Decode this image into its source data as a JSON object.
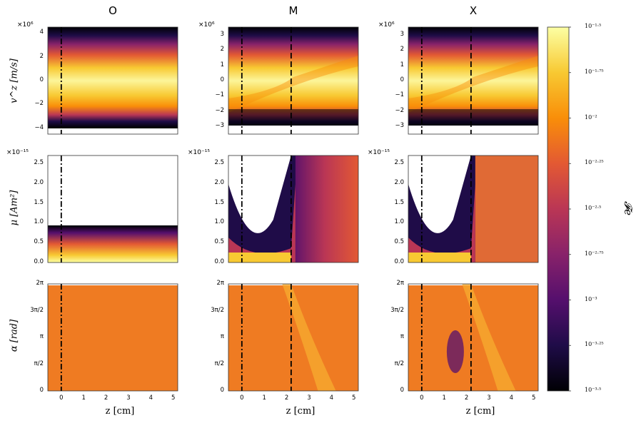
{
  "chart_data": {
    "type": "heatmap",
    "columns": [
      "O",
      "M",
      "X"
    ],
    "row_labels": {
      "vz": "v^z [m/s]",
      "mu": "μ [Am²]",
      "alpha": "α [rad]"
    },
    "exponents": {
      "vz": "×10⁶",
      "mu": "×10⁻¹⁵"
    },
    "xlabel": "z [cm]",
    "x_ticks": [
      "0",
      "1",
      "2",
      "3",
      "4",
      "5"
    ],
    "xlim": [
      -0.6,
      5.2
    ],
    "vz_ticks_O": [
      "4",
      "2",
      "0",
      "−2",
      "−4"
    ],
    "vz_ticks_MX": [
      "3",
      "2",
      "1",
      "0",
      "−1",
      "−2",
      "−3"
    ],
    "vz_lim_O": [
      -4.5,
      4.5
    ],
    "vz_lim_MX": [
      -3.5,
      3.5
    ],
    "mu_ticks": [
      "2.5",
      "2.0",
      "1.5",
      "1.0",
      "0.5",
      "0.0"
    ],
    "mu_lim": [
      0.0,
      2.7
    ],
    "alpha_ticks": [
      "2π",
      "3π/2",
      "π",
      "π/2",
      "0"
    ],
    "alpha_lim": [
      0,
      6.283
    ],
    "dashdot_line_z": 0.0,
    "dashed_line_z": 2.2,
    "colorbar": {
      "label": "𝓕e",
      "scale": "log10",
      "range": [
        -3.5,
        -1.5
      ],
      "ticks": [
        "10⁻¹·⁵",
        "10⁻¹·⁷⁵",
        "10⁻²",
        "10⁻²·²⁵",
        "10⁻²·⁵",
        "10⁻²·⁷⁵",
        "10⁻³",
        "10⁻³·²⁵",
        "10⁻³·⁵"
      ],
      "colormap": "inferno"
    }
  },
  "colors": {
    "inferno": [
      "#000004",
      "#1f0c48",
      "#550f6d",
      "#88226a",
      "#ba3655",
      "#e35933",
      "#f98e09",
      "#f8c932",
      "#fcffa4"
    ]
  }
}
